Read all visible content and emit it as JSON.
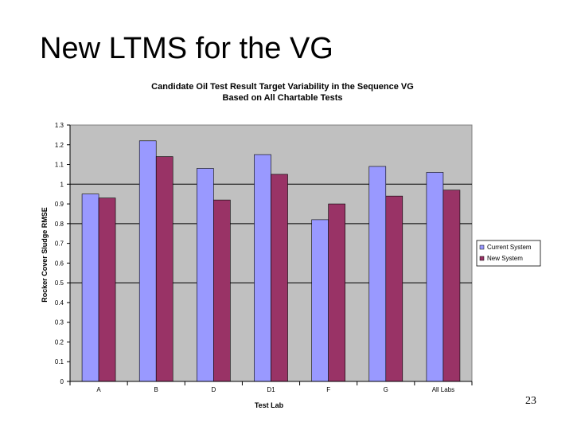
{
  "slide": {
    "title": "New LTMS for the VG",
    "page_number": "23"
  },
  "chart_data": {
    "type": "bar",
    "title": "Candidate Oil Test Result Target Variability in the Sequence VG",
    "subtitle": "Based on All Chartable Tests",
    "xlabel": "Test Lab",
    "ylabel": "Rocker Cover Sludge RMSE",
    "categories": [
      "A",
      "B",
      "D",
      "D1",
      "F",
      "G",
      "All Labs"
    ],
    "ylim": [
      0,
      1.3
    ],
    "yticks": [
      "0",
      "0.1",
      "0.2",
      "0.3",
      "0.4",
      "0.5",
      "0.6",
      "0.7",
      "0.8",
      "0.9",
      "1",
      "1.1",
      "1.2",
      "1.3"
    ],
    "gridlines": [
      0.5,
      0.8,
      1.0
    ],
    "legend_position": "right",
    "series": [
      {
        "name": "Current System",
        "color": "#9999ff",
        "values": [
          0.95,
          1.22,
          1.08,
          1.15,
          0.82,
          1.09,
          1.06
        ]
      },
      {
        "name": "New System",
        "color": "#993366",
        "values": [
          0.93,
          1.14,
          0.92,
          1.05,
          0.9,
          0.94,
          0.97
        ]
      }
    ],
    "plot_background": "#c0c0c0"
  }
}
